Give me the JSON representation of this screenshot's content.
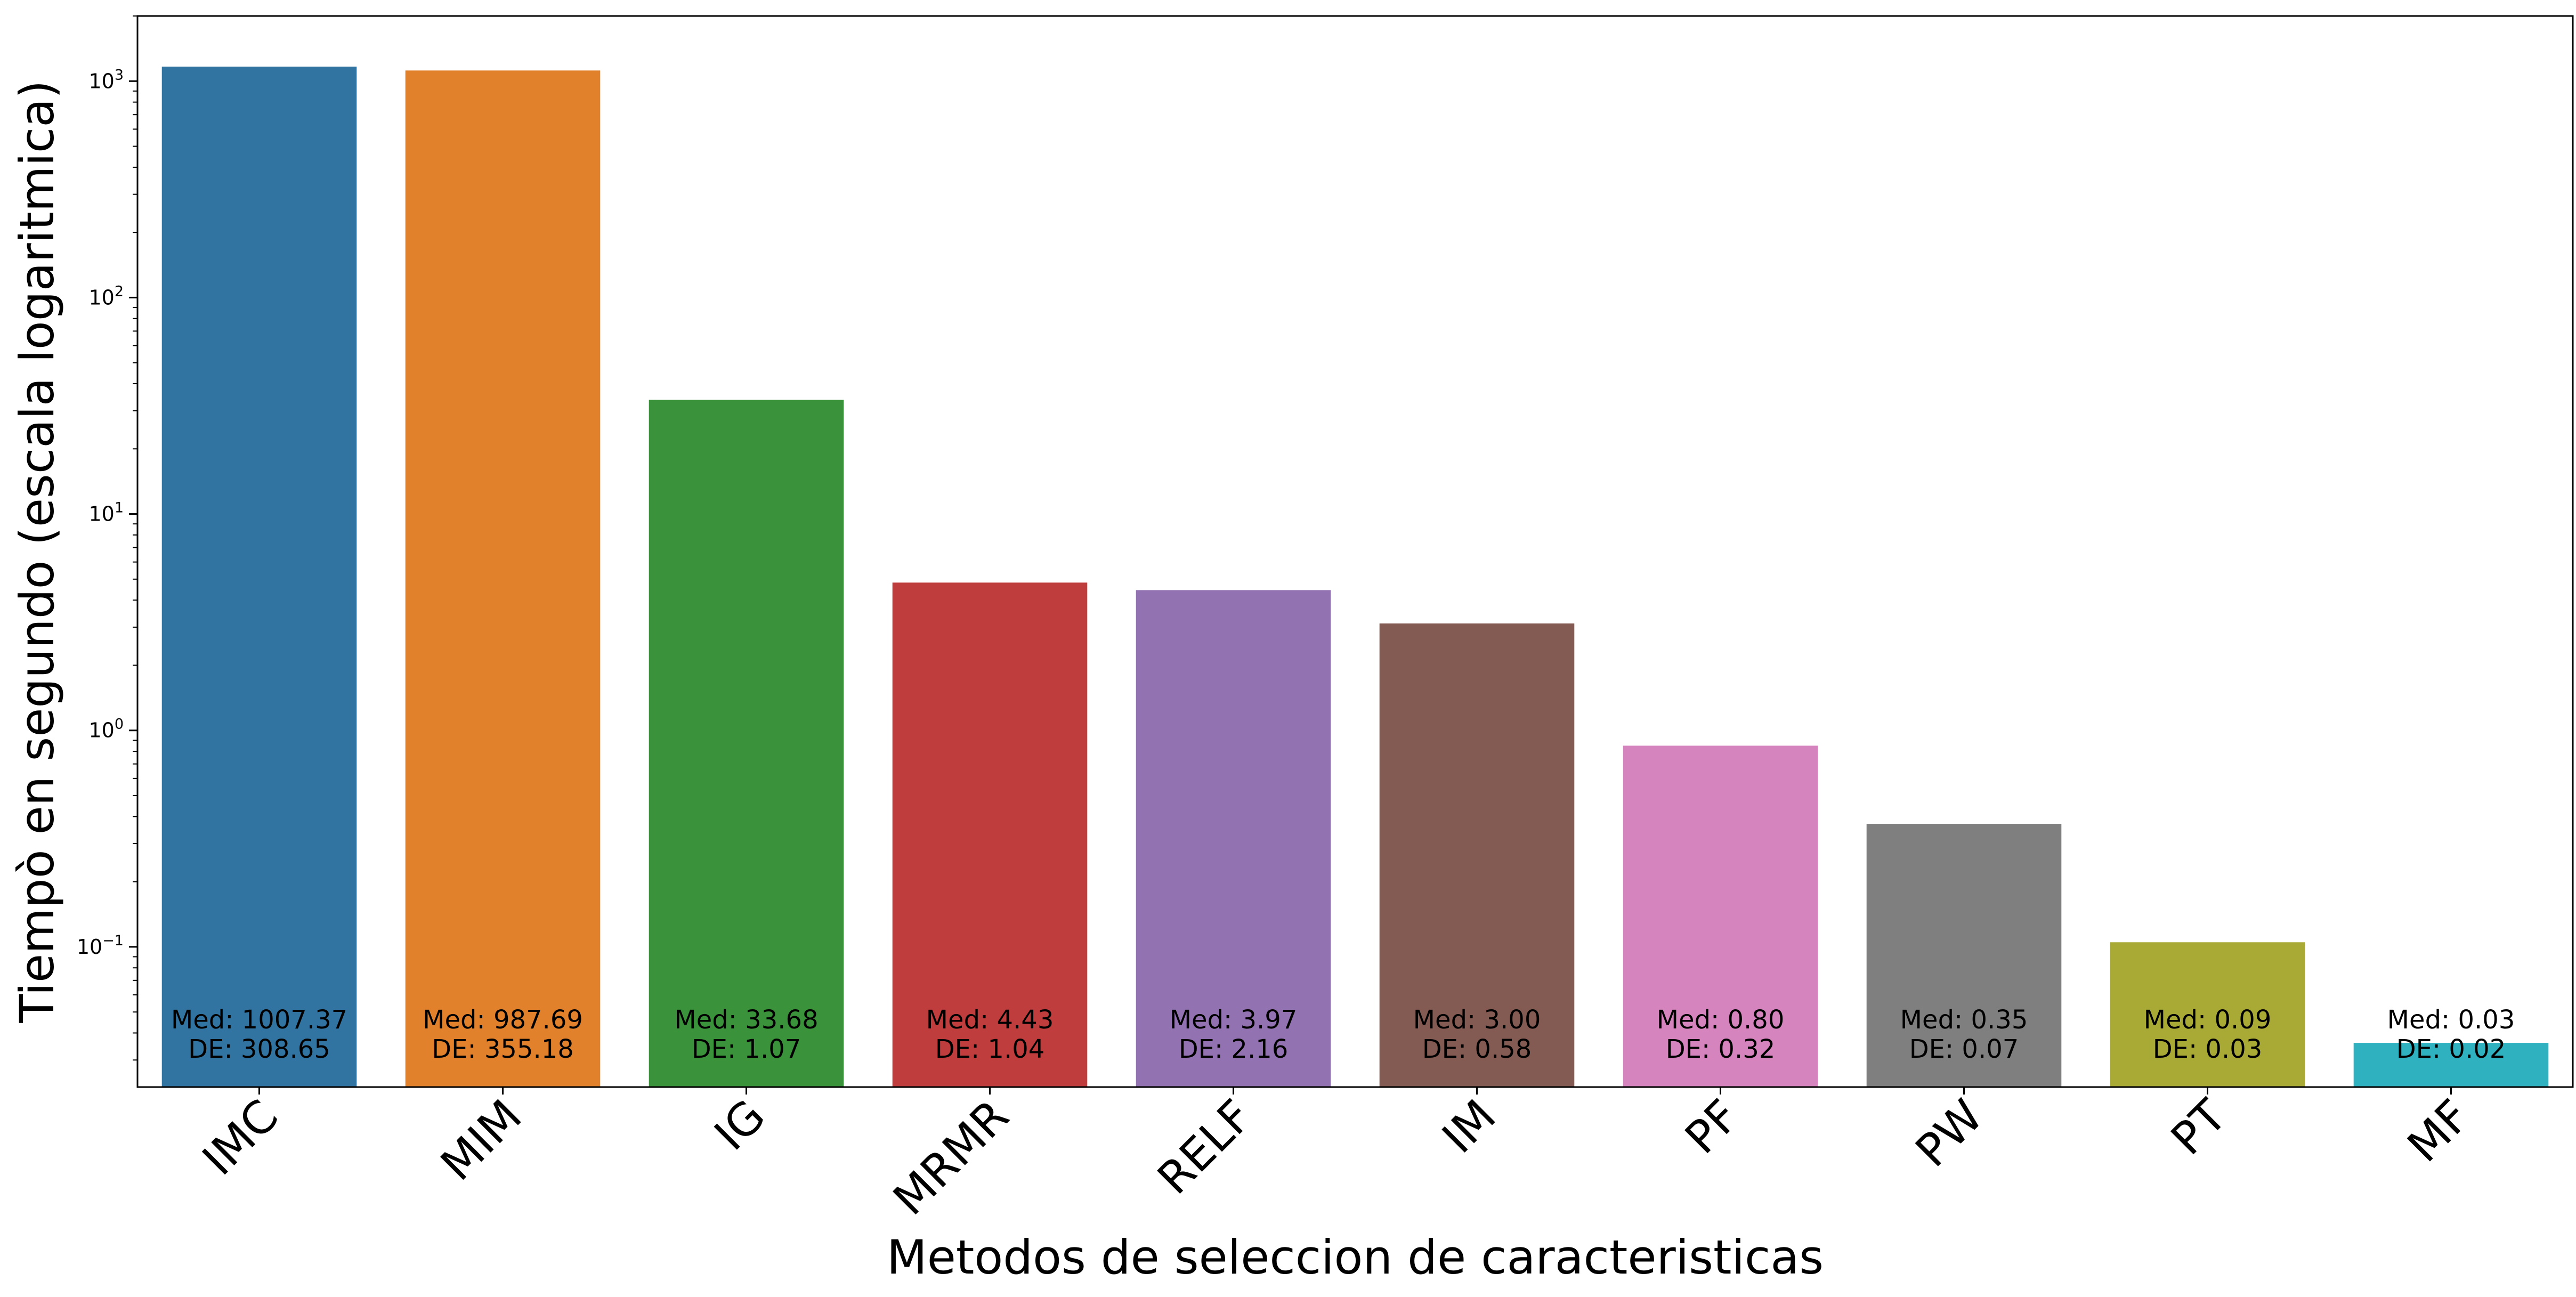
{
  "chart_data": {
    "type": "bar",
    "xlabel": "Metodos de seleccion de caracteristicas",
    "ylabel": "Tiempò en segundo (escala logaritmica)",
    "yscale": "log",
    "ylim": [
      0.0225,
      2000
    ],
    "grid": false,
    "legend": "none",
    "categories": [
      "IMC",
      "MIM",
      "IG",
      "MRMR",
      "RELF",
      "IM",
      "PF",
      "PW",
      "PT",
      "MF"
    ],
    "values": [
      1167,
      1120,
      33.68,
      4.82,
      4.45,
      3.12,
      0.85,
      0.37,
      0.105,
      0.036
    ],
    "yticks": [
      {
        "value": 0.1,
        "label_base": "10",
        "label_exp": "−1"
      },
      {
        "value": 1,
        "label_base": "10",
        "label_exp": "0"
      },
      {
        "value": 10,
        "label_base": "10",
        "label_exp": "1"
      },
      {
        "value": 100,
        "label_base": "10",
        "label_exp": "2"
      },
      {
        "value": 1000,
        "label_base": "10",
        "label_exp": "3"
      }
    ],
    "bar_labels": [
      {
        "med": "Med: 1007.37",
        "de": "DE: 308.65"
      },
      {
        "med": "Med: 987.69",
        "de": "DE: 355.18"
      },
      {
        "med": "Med: 33.68",
        "de": "DE: 1.07"
      },
      {
        "med": "Med: 4.43",
        "de": "DE: 1.04"
      },
      {
        "med": "Med: 3.97",
        "de": "DE: 2.16"
      },
      {
        "med": "Med: 3.00",
        "de": "DE: 0.58"
      },
      {
        "med": "Med: 0.80",
        "de": "DE: 0.32"
      },
      {
        "med": "Med: 0.35",
        "de": "DE: 0.07"
      },
      {
        "med": "Med: 0.09",
        "de": "DE: 0.03"
      },
      {
        "med": "Med: 0.03",
        "de": "DE: 0.02"
      }
    ],
    "colors": [
      "#3274a1",
      "#e1812c",
      "#3a923a",
      "#c03d3e",
      "#9372b2",
      "#845b53",
      "#d684bd",
      "#7f7f7f",
      "#a9aa35",
      "#2fb1c0"
    ]
  }
}
